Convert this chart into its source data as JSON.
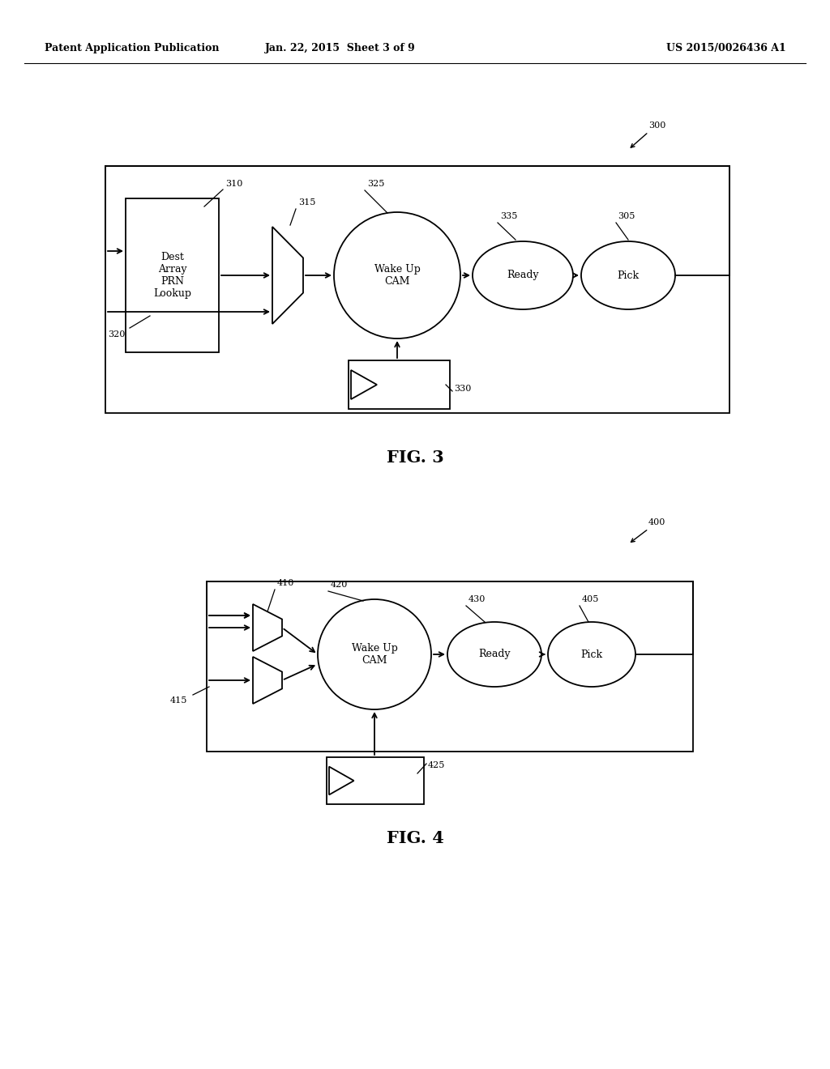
{
  "bg_color": "#ffffff",
  "header_left": "Patent Application Publication",
  "header_mid": "Jan. 22, 2015  Sheet 3 of 9",
  "header_right": "US 2015/0026436 A1",
  "fig3_label": "FIG. 3",
  "fig4_label": "FIG. 4",
  "fig3_ref_num": "300",
  "fig4_ref_num": "400"
}
